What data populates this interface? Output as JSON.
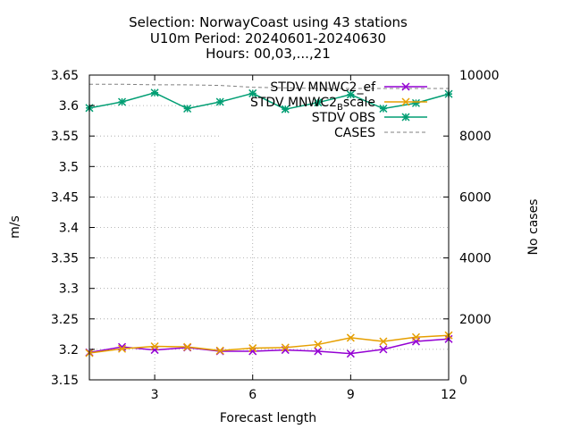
{
  "title_lines": [
    "Selection: NorwayCoast using    43 stations",
    "U10m   Period: 20240601-20240630",
    "Hours: 00,03,...,21"
  ],
  "chart_data": {
    "type": "line",
    "xlabel": "Forecast length",
    "ylabel": "m/s",
    "y2label": "No cases",
    "xlim": [
      1,
      12
    ],
    "ylim": [
      3.15,
      3.65
    ],
    "y2lim": [
      0,
      10000
    ],
    "xticks": [
      3,
      6,
      9,
      12
    ],
    "yticks": [
      "3.15",
      "3.2",
      "3.25",
      "3.3",
      "3.35",
      "3.4",
      "3.45",
      "3.5",
      "3.55",
      "3.6",
      "3.65"
    ],
    "y2ticks": [
      "0",
      "2000",
      "4000",
      "6000",
      "8000",
      "10000"
    ],
    "grid": true,
    "legend_position": "top-right",
    "x": [
      1,
      2,
      3,
      4,
      5,
      6,
      7,
      8,
      9,
      10,
      11,
      12
    ],
    "series": [
      {
        "name": "STDV MNWC2_ef",
        "color": "#9400d3",
        "marker": "cross",
        "axis": "y",
        "values": [
          3.195,
          3.204,
          3.199,
          3.203,
          3.197,
          3.197,
          3.199,
          3.197,
          3.193,
          3.2,
          3.213,
          3.217
        ]
      },
      {
        "name": "STDV MNWC2_Bscale",
        "legend_main": "STDV MNWC2",
        "legend_sub": "B",
        "legend_tail": "scale",
        "color": "#e69f00",
        "marker": "cross",
        "axis": "y",
        "values": [
          3.194,
          3.201,
          3.205,
          3.204,
          3.198,
          3.202,
          3.203,
          3.208,
          3.219,
          3.213,
          3.22,
          3.223
        ]
      },
      {
        "name": "STDV OBS",
        "color": "#009e73",
        "marker": "star",
        "axis": "y",
        "values": [
          3.596,
          3.606,
          3.621,
          3.595,
          3.606,
          3.62,
          3.594,
          3.605,
          3.618,
          3.595,
          3.604,
          3.619
        ]
      },
      {
        "name": "CASES",
        "color": "#808080",
        "marker": "none",
        "dash": true,
        "axis": "y2",
        "values": [
          9700,
          9700,
          9680,
          9680,
          9660,
          9600,
          9580,
          9560,
          9560,
          9560,
          9560,
          9560
        ]
      }
    ]
  }
}
